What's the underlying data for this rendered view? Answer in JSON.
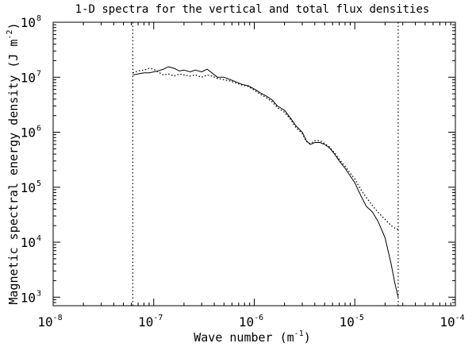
{
  "chart_data": {
    "type": "line",
    "title": "1-D spectra for the vertical and total flux densities",
    "xlabel": {
      "text": "Wave number (m",
      "sup": "-1",
      "tail": ")"
    },
    "ylabel": {
      "text": "Magnetic spectral energy density (J m",
      "sup": "-2",
      "tail": ")"
    },
    "xscale": "log",
    "yscale": "log",
    "xlim": [
      1e-08,
      0.0001
    ],
    "ylim": [
      700.0,
      100000000.0
    ],
    "xticks": [
      {
        "base": "10",
        "exp": "-8",
        "value": 1e-08
      },
      {
        "base": "10",
        "exp": "-7",
        "value": 1e-07
      },
      {
        "base": "10",
        "exp": "-6",
        "value": 1e-06
      },
      {
        "base": "10",
        "exp": "-5",
        "value": 1e-05
      },
      {
        "base": "10",
        "exp": "-4",
        "value": 0.0001
      }
    ],
    "yticks": [
      {
        "base": "10",
        "exp": "3",
        "value": 1000.0
      },
      {
        "base": "10",
        "exp": "4",
        "value": 10000.0
      },
      {
        "base": "10",
        "exp": "5",
        "value": 100000.0
      },
      {
        "base": "10",
        "exp": "6",
        "value": 1000000.0
      },
      {
        "base": "10",
        "exp": "7",
        "value": 10000000.0
      },
      {
        "base": "10",
        "exp": "8",
        "value": 100000000.0
      }
    ],
    "vlines": [
      6.2e-08,
      2.7e-05
    ],
    "grid": false,
    "legend": "none",
    "series": [
      {
        "style": "solid",
        "color": "#000000",
        "x": [
          6.2e-08,
          7e-08,
          8e-08,
          9e-08,
          1e-07,
          1.1e-07,
          1.25e-07,
          1.4e-07,
          1.6e-07,
          1.8e-07,
          2e-07,
          2.3e-07,
          2.6e-07,
          3e-07,
          3.4e-07,
          3.8e-07,
          4.3e-07,
          5e-07,
          5.8e-07,
          6.6e-07,
          7.6e-07,
          8.7e-07,
          1e-06,
          1.15e-06,
          1.3e-06,
          1.5e-06,
          1.7e-06,
          2e-06,
          2.3e-06,
          2.6e-06,
          3e-06,
          3.3e-06,
          3.6e-06,
          4e-06,
          4.5e-06,
          5e-06,
          5.6e-06,
          6.3e-06,
          7e-06,
          8e-06,
          9e-06,
          1e-05,
          1.15e-05,
          1.3e-05,
          1.5e-05,
          1.7e-05,
          2e-05,
          2.3e-05,
          2.5e-05,
          2.7e-05
        ],
        "y": [
          11000000.0,
          11500000.0,
          12000000.0,
          12000000.0,
          12500000.0,
          13000000.0,
          14000000.0,
          15500000.0,
          14500000.0,
          13000000.0,
          13500000.0,
          12500000.0,
          13500000.0,
          12500000.0,
          14000000.0,
          12000000.0,
          10000000.0,
          10000000.0,
          9000000.0,
          8200000.0,
          7400000.0,
          7000000.0,
          6100000.0,
          5200000.0,
          4600000.0,
          3900000.0,
          3000000.0,
          2500000.0,
          1800000.0,
          1300000.0,
          1000000.0,
          700000.0,
          600000.0,
          650000.0,
          650000.0,
          600000.0,
          520000.0,
          400000.0,
          300000.0,
          220000.0,
          160000.0,
          120000.0,
          70000.0,
          45000.0,
          35000.0,
          24000.0,
          12000.0,
          4000.0,
          1800.0,
          1000.0
        ]
      },
      {
        "style": "dotted",
        "color": "#000000",
        "x": [
          6.2e-08,
          7e-08,
          8e-08,
          9e-08,
          1e-07,
          1.1e-07,
          1.25e-07,
          1.4e-07,
          1.6e-07,
          1.8e-07,
          2e-07,
          2.3e-07,
          2.6e-07,
          3e-07,
          3.4e-07,
          3.8e-07,
          4.3e-07,
          5e-07,
          5.8e-07,
          6.6e-07,
          7.6e-07,
          8.7e-07,
          1e-06,
          1.15e-06,
          1.3e-06,
          1.5e-06,
          1.7e-06,
          2e-06,
          2.3e-06,
          2.6e-06,
          3e-06,
          3.3e-06,
          3.6e-06,
          4e-06,
          4.5e-06,
          5e-06,
          5.6e-06,
          6.3e-06,
          7e-06,
          8e-06,
          9e-06,
          1e-05,
          1.15e-05,
          1.3e-05,
          1.5e-05,
          1.7e-05,
          2e-05,
          2.3e-05,
          2.5e-05,
          2.7e-05
        ],
        "y": [
          12000000.0,
          13000000.0,
          13500000.0,
          14500000.0,
          14000000.0,
          12500000.0,
          11000000.0,
          11500000.0,
          10500000.0,
          11500000.0,
          11000000.0,
          10500000.0,
          11000000.0,
          10000000.0,
          11000000.0,
          10500000.0,
          9500000.0,
          9000000.0,
          8500000.0,
          7800000.0,
          7200000.0,
          6800000.0,
          5800000.0,
          4900000.0,
          4300000.0,
          3600000.0,
          2800000.0,
          2300000.0,
          1700000.0,
          1200000.0,
          950000.0,
          680000.0,
          620000.0,
          700000.0,
          700000.0,
          620000.0,
          540000.0,
          420000.0,
          320000.0,
          240000.0,
          180000.0,
          140000.0,
          90000.0,
          65000.0,
          46000.0,
          35000.0,
          26000.0,
          20000.0,
          18000.0,
          17000.0
        ]
      }
    ]
  }
}
